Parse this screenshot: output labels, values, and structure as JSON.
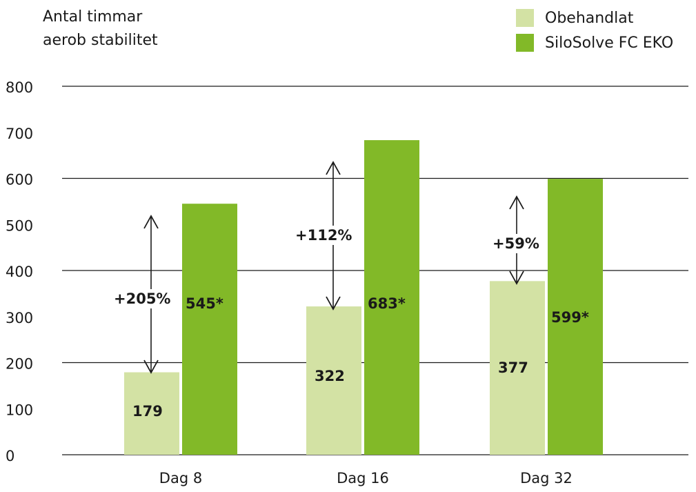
{
  "chart_data": {
    "type": "bar",
    "ytitle_lines": [
      "Antal timmar",
      "aerob stabilitet"
    ],
    "categories": [
      "Dag 8",
      "Dag 16",
      "Dag 32"
    ],
    "series": [
      {
        "name": "Obehandlat",
        "color": "#d3e2a4",
        "values": [
          179,
          322,
          377
        ],
        "labels": [
          "179",
          "322",
          "377"
        ]
      },
      {
        "name": "SiloSolve FC EKO",
        "color": "#82b928",
        "values": [
          545,
          683,
          599
        ],
        "labels": [
          "545*",
          "683*",
          "599*"
        ]
      }
    ],
    "yticks": [
      "0",
      "100",
      "200",
      "300",
      "400",
      "500",
      "600",
      "700",
      "800"
    ],
    "ylim": [
      0,
      800
    ],
    "annotations": [
      "+205%",
      "+112%",
      "+59%"
    ]
  }
}
